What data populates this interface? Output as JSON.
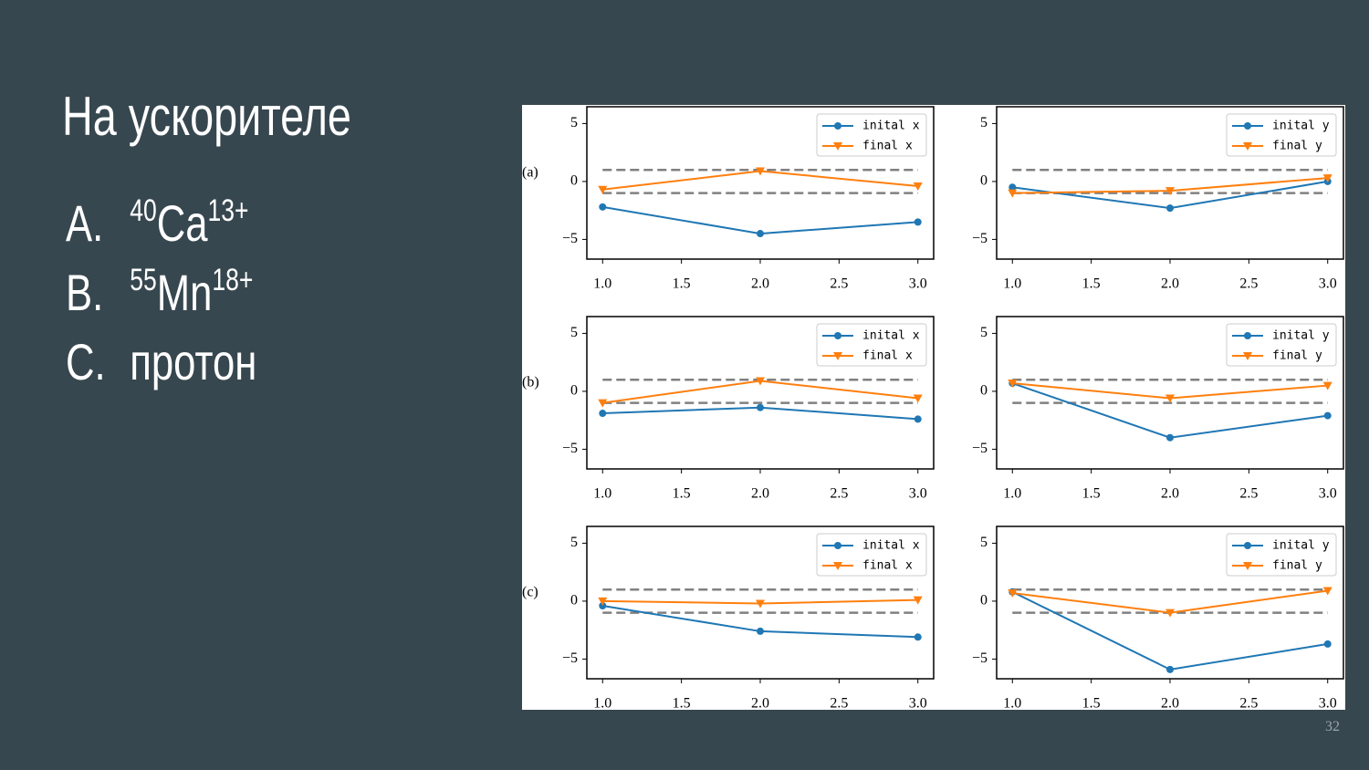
{
  "slide": {
    "title": "На ускорителе",
    "items": [
      {
        "label": "A.",
        "mass": "40",
        "symbol": "Ca",
        "charge": "13+"
      },
      {
        "label": "B.",
        "mass": "55",
        "symbol": "Mn",
        "charge": "18+"
      },
      {
        "label": "C.",
        "symbol": "протон"
      }
    ],
    "page_number": "32"
  },
  "chart_data": [
    {
      "type": "line",
      "panel_label": "(a)",
      "xlim": [
        0.9,
        3.1
      ],
      "ylim": [
        -6.7,
        6.45
      ],
      "xticks": [
        {
          "value": 1,
          "label": "1.0"
        },
        {
          "value": 1.5,
          "label": "1.5"
        },
        {
          "value": 2,
          "label": "2.0"
        },
        {
          "value": 2.5,
          "label": "2.5"
        },
        {
          "value": 3,
          "label": "3.0"
        }
      ],
      "yticks": [
        {
          "value": -5,
          "label": "−5"
        },
        0,
        5
      ],
      "reference_lines": [
        1,
        -1
      ],
      "reference_color": "#808080",
      "legend": "upper right",
      "x": [
        1,
        2,
        3
      ],
      "series": [
        {
          "name": "inital x",
          "color": "#1f77b4",
          "marker": "circle",
          "values": [
            -2.2,
            -4.5,
            -3.5
          ]
        },
        {
          "name": "final x",
          "color": "#ff7f0e",
          "marker": "triangle-down",
          "values": [
            -0.7,
            0.9,
            -0.4
          ]
        }
      ]
    },
    {
      "type": "line",
      "xlim": [
        0.9,
        3.1
      ],
      "ylim": [
        -6.7,
        6.45
      ],
      "xticks": [
        {
          "value": 1,
          "label": "1.0"
        },
        {
          "value": 1.5,
          "label": "1.5"
        },
        {
          "value": 2,
          "label": "2.0"
        },
        {
          "value": 2.5,
          "label": "2.5"
        },
        {
          "value": 3,
          "label": "3.0"
        }
      ],
      "yticks": [
        {
          "value": -5,
          "label": "−5"
        },
        0,
        5
      ],
      "reference_lines": [
        1,
        -1
      ],
      "reference_color": "#808080",
      "legend": "upper right",
      "x": [
        1,
        2,
        3
      ],
      "series": [
        {
          "name": "inital y",
          "color": "#1f77b4",
          "marker": "circle",
          "values": [
            -0.5,
            -2.3,
            0.0
          ]
        },
        {
          "name": "final y",
          "color": "#ff7f0e",
          "marker": "triangle-down",
          "values": [
            -1.0,
            -0.8,
            0.3
          ]
        }
      ]
    },
    {
      "type": "line",
      "panel_label": "(b)",
      "xlim": [
        0.9,
        3.1
      ],
      "ylim": [
        -6.7,
        6.45
      ],
      "xticks": [
        {
          "value": 1,
          "label": "1.0"
        },
        {
          "value": 1.5,
          "label": "1.5"
        },
        {
          "value": 2,
          "label": "2.0"
        },
        {
          "value": 2.5,
          "label": "2.5"
        },
        {
          "value": 3,
          "label": "3.0"
        }
      ],
      "yticks": [
        {
          "value": -5,
          "label": "−5"
        },
        0,
        5
      ],
      "reference_lines": [
        1,
        -1
      ],
      "reference_color": "#808080",
      "legend": "upper right",
      "x": [
        1,
        2,
        3
      ],
      "series": [
        {
          "name": "inital x",
          "color": "#1f77b4",
          "marker": "circle",
          "values": [
            -1.9,
            -1.4,
            -2.4
          ]
        },
        {
          "name": "final x",
          "color": "#ff7f0e",
          "marker": "triangle-down",
          "values": [
            -1.0,
            0.9,
            -0.6
          ]
        }
      ]
    },
    {
      "type": "line",
      "xlim": [
        0.9,
        3.1
      ],
      "ylim": [
        -6.7,
        6.45
      ],
      "xticks": [
        {
          "value": 1,
          "label": "1.0"
        },
        {
          "value": 1.5,
          "label": "1.5"
        },
        {
          "value": 2,
          "label": "2.0"
        },
        {
          "value": 2.5,
          "label": "2.5"
        },
        {
          "value": 3,
          "label": "3.0"
        }
      ],
      "yticks": [
        {
          "value": -5,
          "label": "−5"
        },
        0,
        5
      ],
      "reference_lines": [
        1,
        -1
      ],
      "reference_color": "#808080",
      "legend": "upper right",
      "x": [
        1,
        2,
        3
      ],
      "series": [
        {
          "name": "inital y",
          "color": "#1f77b4",
          "marker": "circle",
          "values": [
            0.7,
            -4.0,
            -2.1
          ]
        },
        {
          "name": "final y",
          "color": "#ff7f0e",
          "marker": "triangle-down",
          "values": [
            0.7,
            -0.6,
            0.5
          ]
        }
      ]
    },
    {
      "type": "line",
      "panel_label": "(c)",
      "xlim": [
        0.9,
        3.1
      ],
      "ylim": [
        -6.7,
        6.45
      ],
      "xticks": [
        {
          "value": 1,
          "label": "1.0"
        },
        {
          "value": 1.5,
          "label": "1.5"
        },
        {
          "value": 2,
          "label": "2.0"
        },
        {
          "value": 2.5,
          "label": "2.5"
        },
        {
          "value": 3,
          "label": "3.0"
        }
      ],
      "yticks": [
        {
          "value": -5,
          "label": "−5"
        },
        0,
        5
      ],
      "reference_lines": [
        1,
        -1
      ],
      "reference_color": "#808080",
      "legend": "upper right",
      "x": [
        1,
        2,
        3
      ],
      "series": [
        {
          "name": "inital x",
          "color": "#1f77b4",
          "marker": "circle",
          "values": [
            -0.4,
            -2.6,
            -3.1
          ]
        },
        {
          "name": "final x",
          "color": "#ff7f0e",
          "marker": "triangle-down",
          "values": [
            0.0,
            -0.2,
            0.1
          ]
        }
      ]
    },
    {
      "type": "line",
      "xlim": [
        0.9,
        3.1
      ],
      "ylim": [
        -6.7,
        6.45
      ],
      "xticks": [
        {
          "value": 1,
          "label": "1.0"
        },
        {
          "value": 1.5,
          "label": "1.5"
        },
        {
          "value": 2,
          "label": "2.0"
        },
        {
          "value": 2.5,
          "label": "2.5"
        },
        {
          "value": 3,
          "label": "3.0"
        }
      ],
      "yticks": [
        {
          "value": -5,
          "label": "−5"
        },
        0,
        5
      ],
      "reference_lines": [
        1,
        -1
      ],
      "reference_color": "#808080",
      "legend": "upper right",
      "x": [
        1,
        2,
        3
      ],
      "series": [
        {
          "name": "inital y",
          "color": "#1f77b4",
          "marker": "circle",
          "values": [
            0.8,
            -5.9,
            -3.7
          ]
        },
        {
          "name": "final y",
          "color": "#ff7f0e",
          "marker": "triangle-down",
          "values": [
            0.7,
            -1.0,
            0.9
          ]
        }
      ]
    }
  ]
}
